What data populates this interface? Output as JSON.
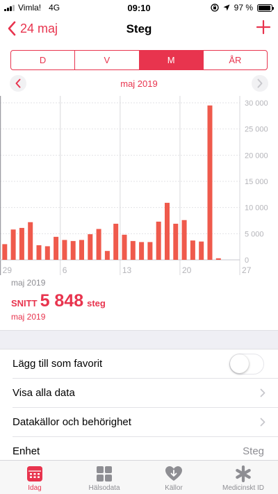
{
  "status_bar": {
    "carrier": "Vimla!",
    "network": "4G",
    "time": "09:10",
    "battery": "97 %"
  },
  "nav": {
    "back_label": "24 maj",
    "title": "Steg"
  },
  "segments": [
    {
      "label": "D",
      "active": false
    },
    {
      "label": "V",
      "active": false
    },
    {
      "label": "M",
      "active": true
    },
    {
      "label": "ÅR",
      "active": false
    }
  ],
  "month_nav": {
    "label": "maj 2019"
  },
  "chart_data": {
    "type": "bar",
    "x": [
      28,
      29,
      30,
      1,
      2,
      3,
      4,
      5,
      6,
      7,
      8,
      9,
      10,
      11,
      12,
      13,
      14,
      15,
      16,
      17,
      18,
      19,
      20,
      21,
      22,
      23,
      24,
      25
    ],
    "values": [
      4200,
      3000,
      5800,
      6100,
      7200,
      2800,
      2600,
      4400,
      3800,
      3600,
      3800,
      4900,
      5900,
      1700,
      6900,
      4800,
      3600,
      3400,
      3400,
      7300,
      10900,
      6900,
      7600,
      3700,
      3500,
      29500,
      300,
      0
    ],
    "highlight_from": 1,
    "x_ticks": [
      "29",
      "6",
      "13",
      "20",
      "27"
    ],
    "y_ticks": [
      "30 000",
      "25 000",
      "20 000",
      "15 000",
      "10 000",
      "5 000",
      "0"
    ],
    "ylim": [
      0,
      30000
    ],
    "colors": {
      "bar": "#ef5a4c",
      "bar_prev": "#dcdcdc"
    }
  },
  "summary": {
    "month_top": "maj 2019",
    "label": "SNITT",
    "value": "5 848",
    "unit": "steg",
    "month_bottom": "maj 2019"
  },
  "rows": [
    {
      "label": "Lägg till som favorit",
      "type": "toggle"
    },
    {
      "label": "Visa alla data",
      "type": "chevron"
    },
    {
      "label": "Datakällor och behörighet",
      "type": "chevron"
    },
    {
      "label": "Enhet",
      "type": "value",
      "value": "Steg"
    }
  ],
  "tabs": [
    {
      "label": "Idag",
      "icon": "calendar-icon",
      "active": true
    },
    {
      "label": "Hälsodata",
      "icon": "grid-icon",
      "active": false
    },
    {
      "label": "Källor",
      "icon": "heart-icon",
      "active": false
    },
    {
      "label": "Medicinskt ID",
      "icon": "asterisk-icon",
      "active": false
    }
  ]
}
